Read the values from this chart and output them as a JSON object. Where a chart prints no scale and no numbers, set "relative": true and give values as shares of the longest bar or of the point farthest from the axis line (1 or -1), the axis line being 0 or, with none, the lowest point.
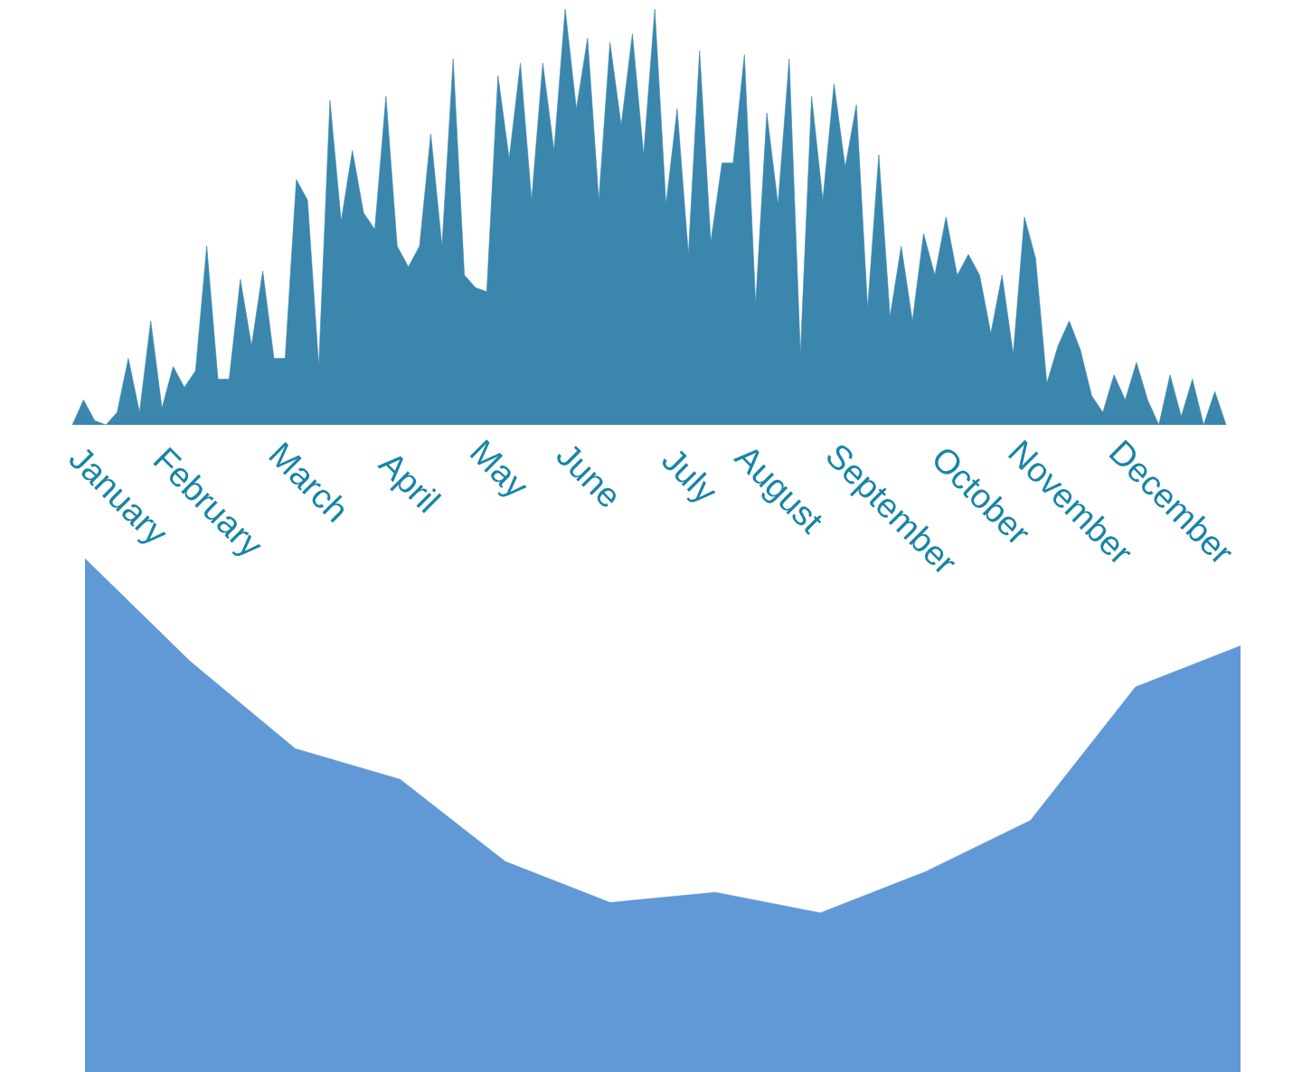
{
  "chart_data": [
    {
      "type": "area",
      "relative": true,
      "categories": [
        null,
        null,
        null,
        null,
        "January",
        null,
        null,
        null,
        null,
        null,
        null,
        null,
        "February",
        null,
        null,
        null,
        null,
        null,
        null,
        null,
        null,
        "March",
        null,
        null,
        null,
        null,
        null,
        null,
        null,
        null,
        "April",
        null,
        null,
        null,
        null,
        null,
        null,
        null,
        "May",
        null,
        null,
        null,
        null,
        null,
        null,
        null,
        "June",
        null,
        null,
        null,
        null,
        null,
        null,
        null,
        null,
        "July",
        null,
        null,
        null,
        null,
        null,
        null,
        null,
        "August",
        null,
        null,
        null,
        null,
        null,
        null,
        null,
        null,
        null,
        "September",
        null,
        null,
        null,
        null,
        null,
        null,
        null,
        "October",
        null,
        null,
        null,
        null,
        null,
        null,
        null,
        "November",
        null,
        null,
        null,
        null,
        null,
        null,
        null,
        null,
        "December",
        null,
        null,
        null,
        null,
        null
      ],
      "series": [
        {
          "color": "#3a86ad",
          "values": [
            0,
            0.06,
            0.01,
            0,
            0.03,
            0.16,
            0.03,
            0.25,
            0.04,
            0.14,
            0.09,
            0.13,
            0.43,
            0.11,
            0.11,
            0.35,
            0.19,
            0.37,
            0.16,
            0.16,
            0.59,
            0.54,
            0.14,
            0.78,
            0.49,
            0.66,
            0.51,
            0.47,
            0.79,
            0.43,
            0.38,
            0.43,
            0.7,
            0.43,
            0.88,
            0.36,
            0.33,
            0.32,
            0.84,
            0.64,
            0.87,
            0.54,
            0.87,
            0.66,
            1,
            0.76,
            0.93,
            0.54,
            0.92,
            0.72,
            0.94,
            0.65,
            1,
            0.53,
            0.76,
            0.41,
            0.9,
            0.44,
            0.63,
            0.63,
            0.89,
            0.29,
            0.75,
            0.53,
            0.88,
            0.17,
            0.79,
            0.54,
            0.82,
            0.62,
            0.77,
            0.28,
            0.65,
            0.26,
            0.43,
            0.25,
            0.46,
            0.36,
            0.5,
            0.36,
            0.41,
            0.36,
            0.22,
            0.36,
            0.17,
            0.5,
            0.4,
            0.1,
            0.19,
            0.25,
            0.18,
            0.07,
            0.03,
            0.12,
            0.06,
            0.15,
            0.06,
            0,
            0.12,
            0.02,
            0.11,
            0,
            0.08,
            0
          ]
        }
      ]
    },
    {
      "type": "area",
      "relative": true,
      "categories": [
        null,
        null,
        null,
        null,
        null,
        null,
        null,
        null,
        null,
        null,
        null,
        null
      ],
      "series": [
        {
          "color": "#6198d6",
          "values": [
            1,
            0.8,
            0.63,
            0.57,
            0.41,
            0.33,
            0.35,
            0.31,
            0.39,
            0.49,
            0.75,
            0.83
          ]
        }
      ]
    }
  ]
}
